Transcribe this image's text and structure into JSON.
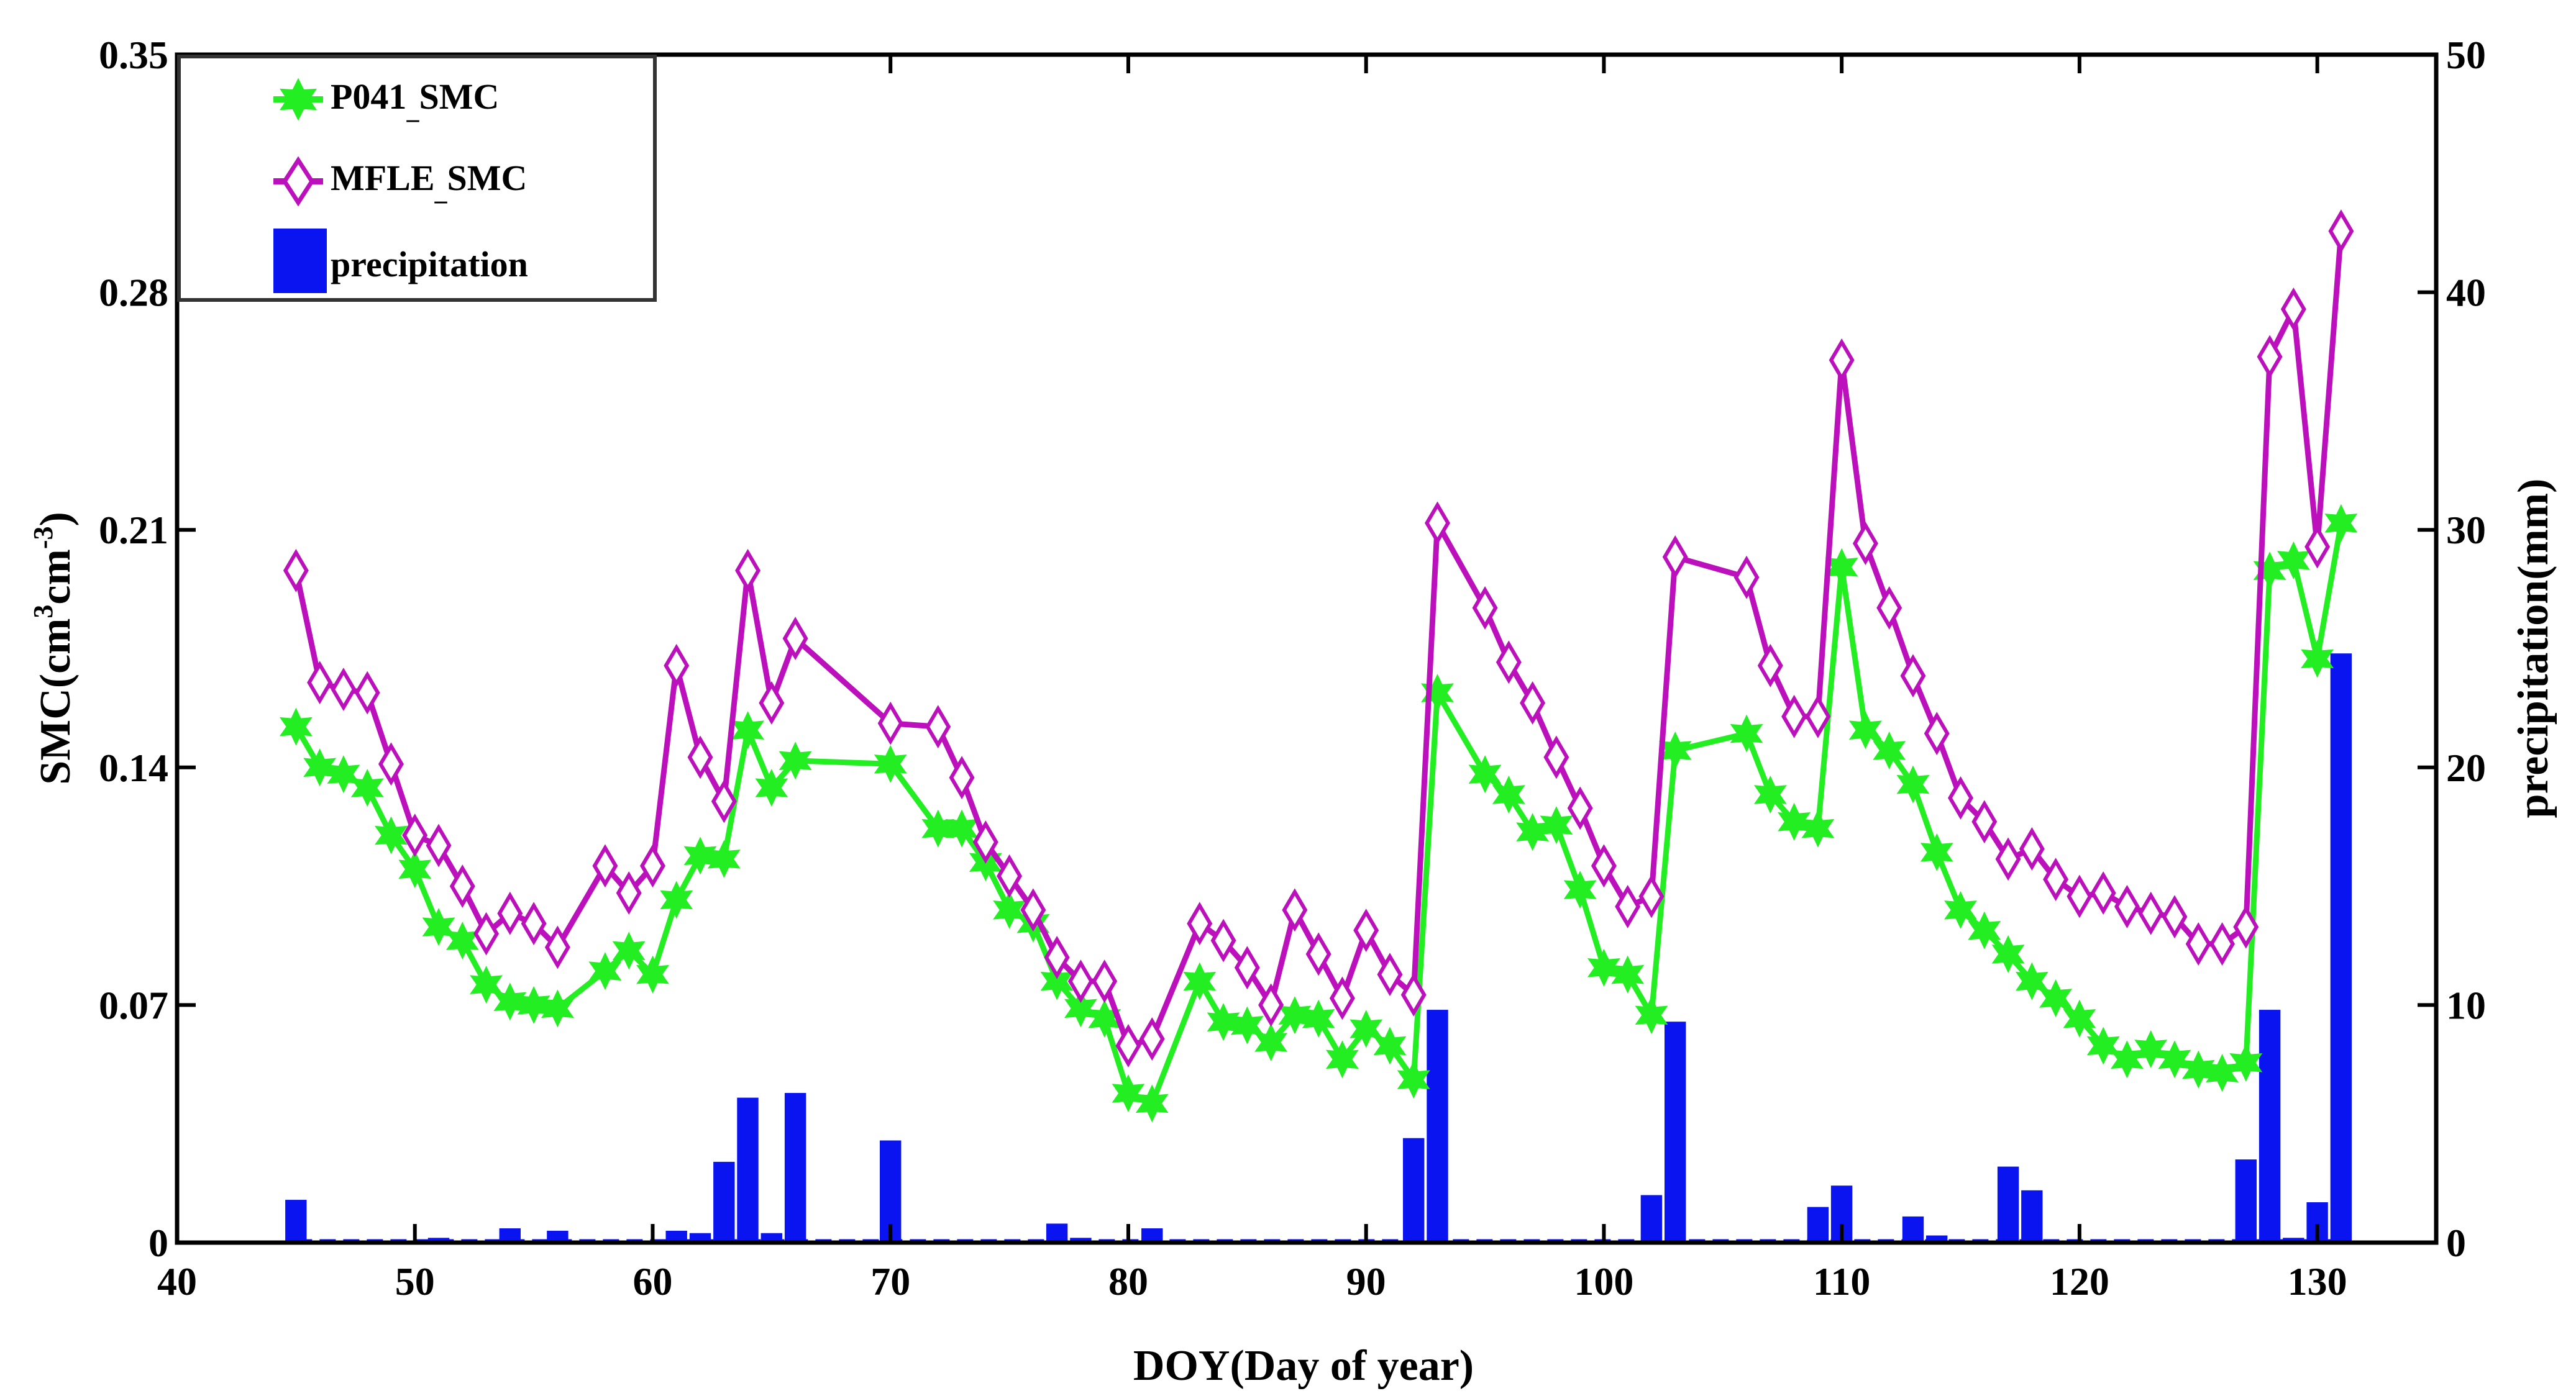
{
  "chart_data": {
    "type": "line+bar",
    "title": "",
    "xlabel": "DOY(Day of year)",
    "ylabel_left_main": "SMC(cm",
    "ylabel_left_sup1": "3",
    "ylabel_left_mid": "cm",
    "ylabel_left_sup2": "-3",
    "ylabel_left_end": ")",
    "ylabel_right": "precipitation(mm)",
    "xlim": [
      40,
      135
    ],
    "ylim_left": [
      0,
      0.35
    ],
    "ylim_right": [
      0,
      50
    ],
    "x_ticks": [
      40,
      50,
      60,
      70,
      80,
      90,
      100,
      110,
      120,
      130
    ],
    "x_tick_labels": [
      "40",
      "50",
      "60",
      "70",
      "80",
      "90",
      "100",
      "110",
      "120",
      "130"
    ],
    "y_left_ticks": [
      0,
      0.07,
      0.14,
      0.21,
      0.28,
      0.35
    ],
    "y_left_tick_labels": [
      "0",
      "0.07",
      "0.14",
      "0.21",
      "0.28",
      "0.35"
    ],
    "y_right_ticks": [
      0,
      10,
      20,
      30,
      40,
      50
    ],
    "y_right_tick_labels": [
      "0",
      "10",
      "20",
      "30",
      "40",
      "50"
    ],
    "legend_position": "top-left",
    "colors": {
      "p041": "#22ee22",
      "mfle": "#bb10bb",
      "precip": "#0a14f0"
    },
    "legend": {
      "p041_main": "P041",
      "p041_sub": "_",
      "p041_end": "SMC",
      "mfle_main": "MFLE",
      "mfle_sub": "_",
      "mfle_end": "SMC",
      "precip": "precipitation"
    },
    "series": [
      {
        "name": "P041_SMC",
        "axis": "left",
        "marker": "star",
        "x": [
          45,
          46,
          47,
          48,
          49,
          50,
          51,
          52,
          53,
          54,
          55,
          56,
          58,
          59,
          60,
          61,
          62,
          63,
          64,
          65,
          66,
          70,
          72,
          73,
          74,
          75,
          76,
          77,
          78,
          79,
          80,
          81,
          83,
          84,
          85,
          86,
          87,
          88,
          89,
          90,
          91,
          92,
          93,
          95,
          96,
          97,
          98,
          99,
          100,
          101,
          102,
          103,
          106,
          107,
          108,
          109,
          110,
          111,
          112,
          113,
          114,
          115,
          116,
          117,
          118,
          119,
          120,
          121,
          122,
          123,
          124,
          125,
          126,
          127,
          128,
          129,
          130,
          131
        ],
        "values": [
          0.152,
          0.14,
          0.138,
          0.134,
          0.12,
          0.11,
          0.093,
          0.089,
          0.076,
          0.071,
          0.07,
          0.069,
          0.08,
          0.086,
          0.079,
          0.101,
          0.114,
          0.113,
          0.151,
          0.134,
          0.142,
          0.141,
          0.122,
          0.122,
          0.112,
          0.098,
          0.094,
          0.077,
          0.069,
          0.066,
          0.044,
          0.041,
          0.077,
          0.065,
          0.064,
          0.059,
          0.067,
          0.066,
          0.054,
          0.063,
          0.058,
          0.048,
          0.162,
          0.138,
          0.132,
          0.121,
          0.123,
          0.104,
          0.081,
          0.079,
          0.067,
          0.145,
          0.15,
          0.132,
          0.124,
          0.122,
          0.199,
          0.151,
          0.145,
          0.135,
          0.115,
          0.098,
          0.092,
          0.085,
          0.077,
          0.072,
          0.066,
          0.058,
          0.054,
          0.057,
          0.054,
          0.051,
          0.05,
          0.053,
          0.198,
          0.201,
          0.172,
          0.212
        ]
      },
      {
        "name": "MFLE_SMC",
        "axis": "left",
        "marker": "diamond",
        "x": [
          45,
          46,
          47,
          48,
          49,
          50,
          51,
          52,
          53,
          54,
          55,
          56,
          58,
          59,
          60,
          61,
          62,
          63,
          64,
          65,
          66,
          70,
          72,
          73,
          74,
          75,
          76,
          77,
          78,
          79,
          80,
          81,
          83,
          84,
          85,
          86,
          87,
          88,
          89,
          90,
          91,
          92,
          93,
          95,
          96,
          97,
          98,
          99,
          100,
          101,
          102,
          103,
          106,
          107,
          108,
          109,
          110,
          111,
          112,
          113,
          114,
          115,
          116,
          117,
          118,
          119,
          120,
          121,
          122,
          123,
          124,
          125,
          126,
          127,
          128,
          129,
          130,
          131
        ],
        "values": [
          0.198,
          0.165,
          0.163,
          0.162,
          0.141,
          0.12,
          0.117,
          0.105,
          0.091,
          0.097,
          0.094,
          0.087,
          0.111,
          0.103,
          0.111,
          0.17,
          0.143,
          0.13,
          0.198,
          0.159,
          0.178,
          0.153,
          0.152,
          0.137,
          0.118,
          0.108,
          0.098,
          0.084,
          0.077,
          0.077,
          0.058,
          0.06,
          0.094,
          0.089,
          0.081,
          0.07,
          0.098,
          0.085,
          0.072,
          0.092,
          0.079,
          0.073,
          0.212,
          0.187,
          0.171,
          0.159,
          0.143,
          0.128,
          0.111,
          0.099,
          0.102,
          0.202,
          0.196,
          0.17,
          0.155,
          0.155,
          0.26,
          0.206,
          0.187,
          0.167,
          0.15,
          0.131,
          0.124,
          0.113,
          0.116,
          0.107,
          0.102,
          0.103,
          0.099,
          0.097,
          0.096,
          0.088,
          0.088,
          0.093,
          0.261,
          0.275,
          0.205,
          0.298
        ]
      }
    ],
    "precipitation": {
      "name": "precipitation",
      "axis": "right",
      "x": [
        45,
        51,
        54,
        56,
        61,
        62,
        63,
        64,
        65,
        66,
        70,
        77,
        78,
        81,
        92,
        93,
        102,
        103,
        109,
        110,
        113,
        114,
        117,
        118,
        127,
        128,
        129,
        130,
        131
      ],
      "values": [
        1.8,
        0.2,
        0.6,
        0.5,
        0.5,
        0.4,
        3.4,
        6.1,
        0.4,
        6.3,
        4.3,
        0.8,
        0.2,
        0.6,
        4.4,
        9.8,
        2.0,
        9.3,
        1.5,
        2.4,
        1.1,
        0.3,
        3.2,
        2.2,
        3.5,
        9.8,
        0.2,
        1.7,
        24.8
      ]
    }
  }
}
